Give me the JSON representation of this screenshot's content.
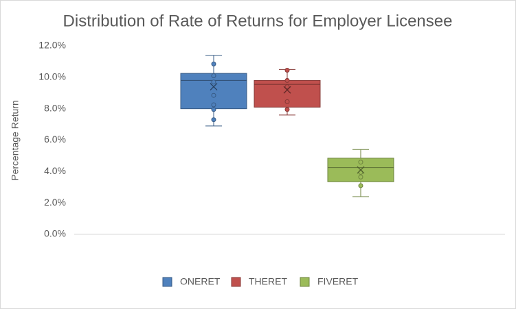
{
  "chart_data": {
    "type": "box",
    "title": "Distribution of Rate of Returns for Employer Licensee",
    "y_label": "Percentage Return",
    "ylim": [
      0,
      12
    ],
    "yticks": [
      {
        "value": 0,
        "label": "0.0%"
      },
      {
        "value": 2,
        "label": "2.0%"
      },
      {
        "value": 4,
        "label": "4.0%"
      },
      {
        "value": 6,
        "label": "6.0%"
      },
      {
        "value": 8,
        "label": "8.0%"
      },
      {
        "value": 10,
        "label": "10.0%"
      },
      {
        "value": 12,
        "label": "12.0%"
      }
    ],
    "legend": "bottom",
    "series": [
      {
        "name": "ONERET",
        "color": "#4f81bd",
        "min": 6.9,
        "q1": 8.0,
        "median": 9.8,
        "q3": 10.25,
        "max": 11.4,
        "mean": 9.4,
        "points": [
          10.85,
          10.1,
          9.7,
          8.85,
          8.25,
          7.95,
          7.3
        ]
      },
      {
        "name": "THERET",
        "color": "#c0504d",
        "min": 7.6,
        "q1": 8.1,
        "median": 9.55,
        "q3": 9.8,
        "max": 10.5,
        "mean": 9.2,
        "points": [
          10.45,
          9.8,
          9.4,
          8.45,
          7.95
        ]
      },
      {
        "name": "FIVERET",
        "color": "#9bbb59",
        "min": 2.4,
        "q1": 3.35,
        "median": 4.25,
        "q3": 4.85,
        "max": 5.4,
        "mean": 4.1,
        "points": [
          4.6,
          3.95,
          3.65,
          3.1
        ]
      }
    ]
  }
}
